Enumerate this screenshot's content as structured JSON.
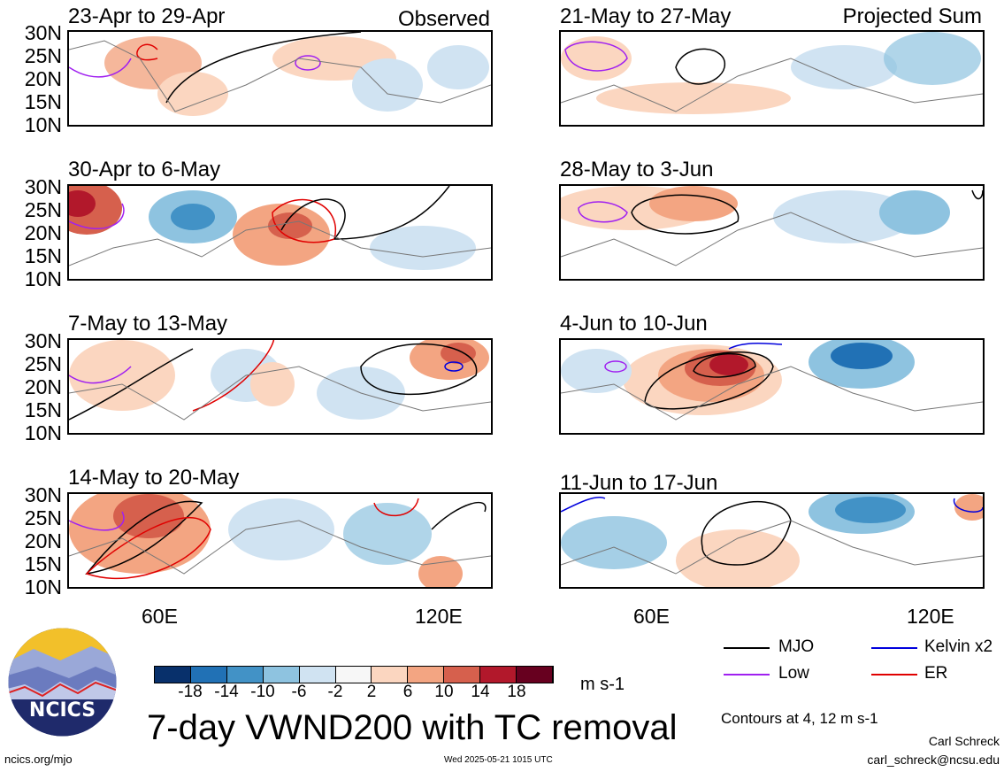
{
  "panels_left": [
    {
      "title": "23-Apr to 29-Apr",
      "tag": "Observed"
    },
    {
      "title": "30-Apr to 6-May",
      "tag": ""
    },
    {
      "title": "7-May to 13-May",
      "tag": ""
    },
    {
      "title": "14-May to 20-May",
      "tag": ""
    }
  ],
  "panels_right": [
    {
      "title": "21-May to 27-May",
      "tag": "Projected Sum"
    },
    {
      "title": "28-May to 3-Jun",
      "tag": ""
    },
    {
      "title": "4-Jun to 10-Jun",
      "tag": ""
    },
    {
      "title": "11-Jun to 17-Jun",
      "tag": ""
    }
  ],
  "lat_labels": [
    "30N",
    "25N",
    "20N",
    "15N",
    "10N"
  ],
  "lon_labels": [
    "60E",
    "120E"
  ],
  "colorbar": {
    "labels": [
      "-18",
      "-14",
      "-10",
      "-6",
      "-2",
      "2",
      "6",
      "10",
      "14",
      "18"
    ],
    "colors": [
      "#08306b",
      "#2171b5",
      "#4292c6",
      "#8ec3e0",
      "#d0e3f2",
      "#f7f7f7",
      "#fbd6c0",
      "#f3a582",
      "#d6604d",
      "#b2182b",
      "#67001f"
    ],
    "units": "m s-1"
  },
  "title": "7-day VWND200 with TC removal",
  "logo_text": "NCICS",
  "legend": {
    "items": [
      {
        "label": "MJO",
        "color": "#000000"
      },
      {
        "label": "Kelvin x2",
        "color": "#0000dd"
      },
      {
        "label": "Low",
        "color": "#a020f0"
      },
      {
        "label": "ER",
        "color": "#e00000"
      }
    ],
    "contours_note": "Contours at 4, 12 m s-1"
  },
  "footer": {
    "site": "ncics.org/mjo",
    "timestamp": "Wed 2025-05-21 1015 UTC",
    "author": "Carl Schreck",
    "email": "carl_schreck@ncsu.edu"
  }
}
